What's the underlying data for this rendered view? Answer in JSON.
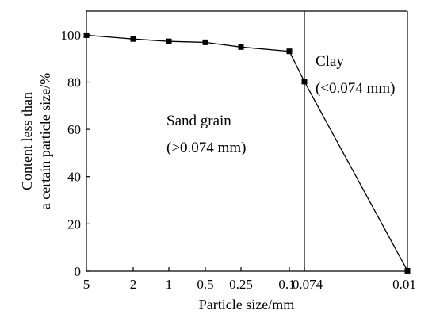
{
  "chart_data": {
    "type": "line",
    "title": "",
    "xlabel": "Particle size/mm",
    "ylabel_lines": [
      "Content less than",
      "a certain particle size/%"
    ],
    "x_ticks": [
      "5",
      "2",
      "1",
      "0.5",
      "0.25",
      "0.1",
      "0.074",
      "0.01"
    ],
    "y_ticks": [
      "0",
      "20",
      "40",
      "60",
      "80",
      "100"
    ],
    "ylim": [
      0,
      110
    ],
    "grid": false,
    "series": [
      {
        "x": [
          5,
          2,
          1,
          0.5,
          0.25,
          0.1,
          0.074,
          0.01
        ],
        "y": [
          99.8,
          98.2,
          97.2,
          96.8,
          94.8,
          93.0,
          80.2,
          0.2
        ],
        "marker": "square",
        "color": "#000000"
      }
    ],
    "divider_x": 0.074,
    "annotations": {
      "clay": {
        "line1": "Clay",
        "line2": "(<0.074 mm)"
      },
      "sand": {
        "line1": "Sand grain",
        "line2": "(>0.074 mm)"
      }
    }
  }
}
